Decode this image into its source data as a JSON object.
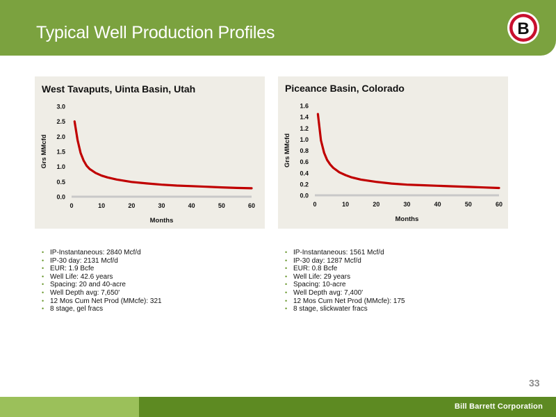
{
  "slide": {
    "title": "Typical Well Production Profiles",
    "page_number": "33",
    "company": "Bill Barrett Corporation",
    "logo_letter": "B",
    "colors": {
      "header_green": "#7ba23f",
      "footer_light": "#9bc05a",
      "footer_dark": "#5d8a22",
      "curve_red": "#c00000",
      "panel_bg": "#efede6"
    }
  },
  "chart_data": [
    {
      "type": "line",
      "title": "West Tavaputs, Uinta Basin, Utah",
      "xlabel": "Months",
      "ylabel": "Grs MMcfd",
      "xlim": [
        0,
        60
      ],
      "ylim": [
        0,
        3.0
      ],
      "x_ticks": [
        "0",
        "10",
        "20",
        "30",
        "40",
        "50",
        "60"
      ],
      "y_ticks": [
        "0.0",
        "0.5",
        "1.0",
        "1.5",
        "2.0",
        "2.5",
        "3.0"
      ],
      "series": [
        {
          "x": [
            1,
            2,
            3,
            4,
            5,
            6,
            8,
            10,
            12,
            15,
            20,
            25,
            30,
            35,
            40,
            45,
            50,
            55,
            60
          ],
          "y": [
            2.5,
            1.88,
            1.45,
            1.2,
            1.03,
            0.92,
            0.79,
            0.7,
            0.64,
            0.57,
            0.49,
            0.44,
            0.4,
            0.37,
            0.35,
            0.33,
            0.31,
            0.29,
            0.28
          ]
        }
      ]
    },
    {
      "type": "line",
      "title": "Piceance Basin, Colorado",
      "xlabel": "Months",
      "ylabel": "Grs MMcfd",
      "xlim": [
        0,
        60
      ],
      "ylim": [
        0,
        1.6
      ],
      "x_ticks": [
        "0",
        "10",
        "20",
        "30",
        "40",
        "50",
        "60"
      ],
      "y_ticks": [
        "0.0",
        "0.2",
        "0.4",
        "0.6",
        "0.8",
        "1.0",
        "1.2",
        "1.4",
        "1.6"
      ],
      "series": [
        {
          "x": [
            1,
            2,
            3,
            4,
            5,
            6,
            8,
            10,
            12,
            15,
            20,
            25,
            30,
            35,
            40,
            45,
            50,
            55,
            60
          ],
          "y": [
            1.45,
            0.98,
            0.76,
            0.63,
            0.55,
            0.49,
            0.41,
            0.36,
            0.32,
            0.28,
            0.24,
            0.21,
            0.19,
            0.18,
            0.17,
            0.16,
            0.15,
            0.14,
            0.13
          ]
        }
      ]
    }
  ],
  "bullets_left": [
    "IP-Instantaneous: 2840 Mcf/d",
    "IP-30 day: 2131 Mcf/d",
    "EUR: 1.9 Bcfe",
    "Well Life: 42.6 years",
    "Spacing: 20 and 40-acre",
    "Well Depth avg: 7,650'",
    "12 Mos Cum Net Prod (MMcfe): 321",
    "8 stage, gel fracs"
  ],
  "bullets_right": [
    "IP-Instantaneous: 1561 Mcf/d",
    "IP-30 day: 1287 Mcf/d",
    "EUR: 0.8 Bcfe",
    "Well Life: 29 years",
    "Spacing: 10-acre",
    "Well Depth avg: 7,400'",
    "12 Mos Cum Net Prod (MMcfe): 175",
    "8 stage, slickwater fracs"
  ]
}
